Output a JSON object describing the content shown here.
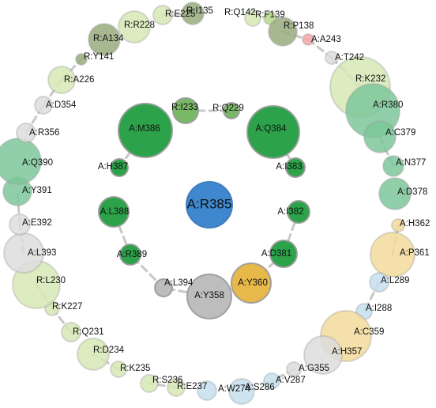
{
  "palette": {
    "dark_green": "#2ca24a",
    "mid_green": "#79b867",
    "light_green": "#b7d88a",
    "pale_green": "#d6e8b5",
    "olive": "#98ac7e",
    "sea_green": "#7cc79a",
    "blue": "#3f87cf",
    "light_blue": "#c6dfee",
    "gold": "#e6b94a",
    "pale_gold": "#f3d99b",
    "gray": "#bdbdbd",
    "light_gray": "#dddddd",
    "pink": "#f4a6a6",
    "connector": "#c8c8c8"
  },
  "center_node": {
    "id": "center",
    "label": "A:R385",
    "color": "blue"
  },
  "inner_ring": [
    {
      "id": "inner-q229",
      "label": "R:Q229",
      "color": "mid_green"
    },
    {
      "id": "inner-q384",
      "label": "A:Q384",
      "color": "dark_green"
    },
    {
      "id": "inner-i383",
      "label": "A:I383",
      "color": "dark_green"
    },
    {
      "id": "inner-i382",
      "label": "A:I382",
      "color": "dark_green"
    },
    {
      "id": "inner-d381",
      "label": "A:D381",
      "color": "dark_green"
    },
    {
      "id": "inner-y360",
      "label": "A:Y360",
      "color": "gold"
    },
    {
      "id": "inner-y358",
      "label": "A:Y358",
      "color": "gray"
    },
    {
      "id": "inner-l394",
      "label": "A:L394",
      "color": "gray"
    },
    {
      "id": "inner-r389",
      "label": "A:R389",
      "color": "dark_green"
    },
    {
      "id": "inner-l388",
      "label": "A:L388",
      "color": "dark_green"
    },
    {
      "id": "inner-h387",
      "label": "A:H387",
      "color": "dark_green"
    },
    {
      "id": "inner-m386",
      "label": "A:M386",
      "color": "dark_green"
    },
    {
      "id": "inner-i233",
      "label": "R:I233",
      "color": "mid_green"
    }
  ],
  "outer_ring": [
    {
      "id": "outer-q142",
      "label": "R:Q142",
      "color": "pale_green"
    },
    {
      "id": "outer-f139",
      "label": "R:F139",
      "color": "light_green"
    },
    {
      "id": "outer-p138",
      "label": "R:P138",
      "color": "olive"
    },
    {
      "id": "outer-a243",
      "label": "A:A243",
      "color": "pink"
    },
    {
      "id": "outer-t242",
      "label": "A:T242",
      "color": "light_gray"
    },
    {
      "id": "outer-k232",
      "label": "R:K232",
      "color": "pale_green"
    },
    {
      "id": "outer-r380",
      "label": "A:R380",
      "color": "sea_green"
    },
    {
      "id": "outer-c379",
      "label": "A:C379",
      "color": "sea_green"
    },
    {
      "id": "outer-n377",
      "label": "A:N377",
      "color": "sea_green"
    },
    {
      "id": "outer-d378",
      "label": "A:D378",
      "color": "sea_green"
    },
    {
      "id": "outer-h362",
      "label": "A:H362",
      "color": "pale_gold"
    },
    {
      "id": "outer-p361",
      "label": "A:P361",
      "color": "pale_gold"
    },
    {
      "id": "outer-l289",
      "label": "A:L289",
      "color": "light_blue"
    },
    {
      "id": "outer-i288",
      "label": "A:I288",
      "color": "light_blue"
    },
    {
      "id": "outer-c359",
      "label": "A:C359",
      "color": "pale_gold"
    },
    {
      "id": "outer-h357",
      "label": "A:H357",
      "color": "light_gray"
    },
    {
      "id": "outer-g355",
      "label": "A:G355",
      "color": "light_gray"
    },
    {
      "id": "outer-v287",
      "label": "A:V287",
      "color": "light_blue"
    },
    {
      "id": "outer-s286",
      "label": "A:S286",
      "color": "light_blue"
    },
    {
      "id": "outer-w274",
      "label": "A:W274",
      "color": "light_blue"
    },
    {
      "id": "outer-e237",
      "label": "R:E237",
      "color": "pale_green"
    },
    {
      "id": "outer-s236",
      "label": "R:S236",
      "color": "pale_green"
    },
    {
      "id": "outer-k235",
      "label": "R:K235",
      "color": "pale_green"
    },
    {
      "id": "outer-d234",
      "label": "R:D234",
      "color": "pale_green"
    },
    {
      "id": "outer-q231",
      "label": "R:Q231",
      "color": "pale_green"
    },
    {
      "id": "outer-k227",
      "label": "R:K227",
      "color": "pale_green"
    },
    {
      "id": "outer-l230",
      "label": "R:L230",
      "color": "pale_green"
    },
    {
      "id": "outer-l393",
      "label": "A:L393",
      "color": "light_gray"
    },
    {
      "id": "outer-e392",
      "label": "A:E392",
      "color": "light_gray"
    },
    {
      "id": "outer-y391",
      "label": "A:Y391",
      "color": "sea_green"
    },
    {
      "id": "outer-q390",
      "label": "A:Q390",
      "color": "sea_green"
    },
    {
      "id": "outer-r356",
      "label": "A:R356",
      "color": "light_gray"
    },
    {
      "id": "outer-d354",
      "label": "A:D354",
      "color": "light_gray"
    },
    {
      "id": "outer-a226",
      "label": "R:A226",
      "color": "pale_green"
    },
    {
      "id": "outer-y141",
      "label": "R:Y141",
      "color": "olive"
    },
    {
      "id": "outer-a134",
      "label": "R:A134",
      "color": "olive"
    },
    {
      "id": "outer-r228",
      "label": "R:R228",
      "color": "pale_green"
    },
    {
      "id": "outer-e225",
      "label": "R:E225",
      "color": "pale_green"
    },
    {
      "id": "outer-i135",
      "label": "R:I135",
      "color": "olive"
    }
  ]
}
